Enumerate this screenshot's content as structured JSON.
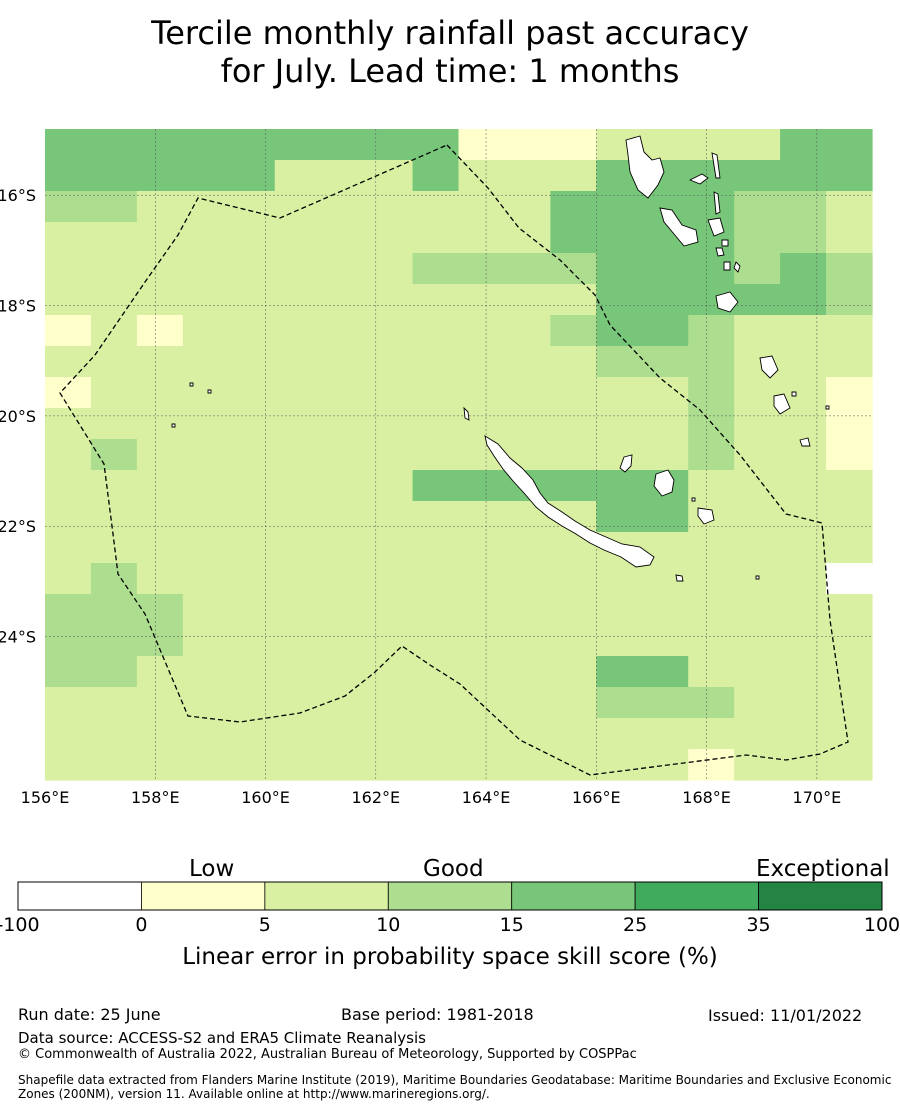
{
  "title_line1": "Tercile monthly rainfall past accuracy",
  "title_line2": "for July. Lead time: 1 months",
  "map": {
    "lon_range": [
      156,
      171
    ],
    "lat_range": [
      -26.6,
      -14.8
    ],
    "lon_ticks": [
      "156°E",
      "158°E",
      "160°E",
      "162°E",
      "164°E",
      "166°E",
      "168°E",
      "170°E"
    ],
    "lat_ticks": [
      "16°S",
      "18°S",
      "20°S",
      "22°S",
      "24°S"
    ],
    "grid_cols": 18,
    "grid_rows": 21,
    "skill_bins": "0=<-100..0 (white), 1=0-5, 2=5-10, 3=10-15, 4=15-25, 5=25-35, 6=35-100",
    "skill_grid": [
      "444444444111222244",
      "444442224222444444",
      "332222222224444332",
      "222222222224444332",
      "222222223333444343",
      "222222222222444443",
      "121222222223443222",
      "222222222222333222",
      "122222222222223221",
      "222222222222223221",
      "232222222222223221",
      "222222224444442222",
      "222222222222442222",
      "222222222222222222",
      "232222222222222220",
      "333222222222222222",
      "333222222222222222",
      "332222222222442222",
      "222222222222333222",
      "222222222222222222",
      "222222222222221222"
    ]
  },
  "colorbar": {
    "categories": [
      "Low",
      "Good",
      "Exceptional"
    ],
    "bounds": [
      "-100",
      "0",
      "5",
      "10",
      "15",
      "25",
      "35",
      "100"
    ],
    "colors": [
      "#ffffff",
      "#ffffcc",
      "#d9f0a3",
      "#addd8e",
      "#78c679",
      "#41ab5d",
      "#238443"
    ],
    "label": "Linear error in probability space skill score (%)"
  },
  "footer": {
    "run_date": "Run date: 25 June",
    "base_period": "Base period: 1981-2018",
    "issued": "Issued: 11/01/2022",
    "data_source": "Data source: ACCESS-S2 and ERA5 Climate Reanalysis",
    "copyright": "© Commonwealth of Australia 2022, Australian Bureau of Meteorology, Supported by COSPPac",
    "shapefile": "Shapefile data extracted from Flanders Marine Institute (2019), Maritime Boundaries Geodatabase: Maritime Boundaries and Exclusive Economic Zones (200NM), version 11. Available online at http://www.marineregions.org/."
  }
}
